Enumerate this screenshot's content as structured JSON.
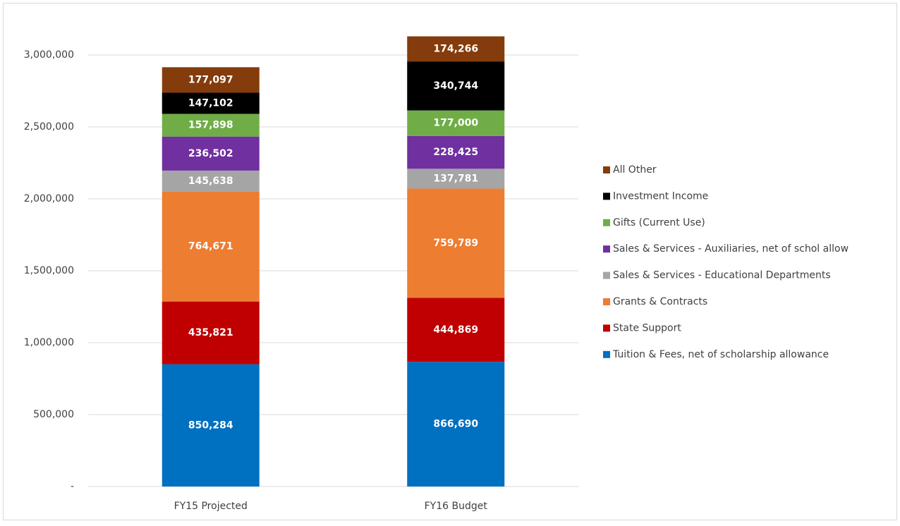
{
  "chart_data": {
    "type": "stacked-bar",
    "categories": [
      "FY15 Projected",
      "FY16 Budget"
    ],
    "ylim": [
      0,
      3000000
    ],
    "yticks": [
      {
        "value": 0,
        "label": "-"
      },
      {
        "value": 500000,
        "label": "500,000"
      },
      {
        "value": 1000000,
        "label": "1,000,000"
      },
      {
        "value": 1500000,
        "label": "1,500,000"
      },
      {
        "value": 2000000,
        "label": "2,000,000"
      },
      {
        "value": 2500000,
        "label": "2,500,000"
      },
      {
        "value": 3000000,
        "label": "3,000,000"
      }
    ],
    "grid": true,
    "legend": "right",
    "series": [
      {
        "name": "Tuition & Fees, net of scholarship allowance",
        "color": "#0070c0",
        "values": [
          850284,
          866690
        ],
        "value_labels": [
          "850,284",
          "866,690"
        ]
      },
      {
        "name": "State Support",
        "color": "#c00000",
        "values": [
          435821,
          444869
        ],
        "value_labels": [
          "435,821",
          "444,869"
        ]
      },
      {
        "name": "Grants & Contracts",
        "color": "#ed7d31",
        "values": [
          764671,
          759789
        ],
        "value_labels": [
          "764,671",
          "759,789"
        ]
      },
      {
        "name": "Sales & Services - Educational Departments",
        "color": "#a5a5a5",
        "values": [
          145638,
          137781
        ],
        "value_labels": [
          "145,638",
          "137,781"
        ]
      },
      {
        "name": "Sales & Services - Auxiliaries, net of schol allow",
        "color": "#7030a0",
        "values": [
          236502,
          228425
        ],
        "value_labels": [
          "236,502",
          "228,425"
        ]
      },
      {
        "name": "Gifts (Current Use)",
        "color": "#70ad47",
        "values": [
          157898,
          177000
        ],
        "value_labels": [
          "157,898",
          "177,000"
        ]
      },
      {
        "name": "Investment Income",
        "color": "#000000",
        "values": [
          147102,
          340744
        ],
        "value_labels": [
          "147,102",
          "340,744"
        ]
      },
      {
        "name": "All Other",
        "color": "#843c0c",
        "values": [
          177097,
          174266
        ],
        "value_labels": [
          "177,097",
          "174,266"
        ]
      }
    ]
  }
}
